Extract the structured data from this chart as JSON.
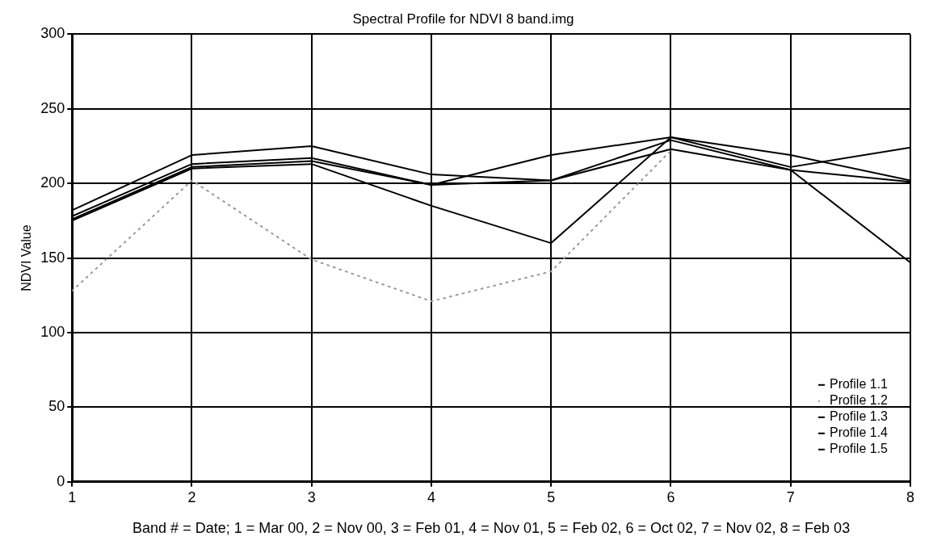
{
  "chart_data": {
    "type": "line",
    "title": "Spectral Profile for NDVI 8 band.img",
    "xlabel": "Band # = Date; 1 = Mar 00, 2 = Nov 00, 3 = Feb 01, 4 = Nov 01, 5 = Feb 02, 6 = Oct 02, 7 = Nov 02, 8 = Feb 03",
    "ylabel": "NDVI Value",
    "x": [
      1,
      2,
      3,
      4,
      5,
      6,
      7,
      8
    ],
    "series": [
      {
        "name": "Profile 1.1",
        "color": "#000000",
        "values": [
          182,
          219,
          225,
          206,
          202,
          223,
          209,
          147
        ]
      },
      {
        "name": "Profile 1.2",
        "color": "#9a9a9a",
        "line_style": "dotted",
        "values": [
          128,
          202,
          149,
          121,
          141,
          222,
          null,
          null
        ]
      },
      {
        "name": "Profile 1.3",
        "color": "#000000",
        "values": [
          178,
          213,
          217,
          199,
          219,
          231,
          219,
          202
        ]
      },
      {
        "name": "Profile 1.4",
        "color": "#000000",
        "values": [
          175,
          210,
          213,
          185,
          160,
          231,
          211,
          224
        ]
      },
      {
        "name": "Profile 1.5",
        "color": "#000000",
        "values": [
          176,
          211,
          215,
          199,
          202,
          229,
          209,
          201
        ]
      }
    ],
    "xlim": [
      1,
      8
    ],
    "xticks": [
      1,
      2,
      3,
      4,
      5,
      6,
      7,
      8
    ],
    "ylim": [
      0,
      300
    ],
    "yticks": [
      0,
      50,
      100,
      150,
      200,
      250,
      300
    ],
    "grid": true,
    "legend": "bottom right",
    "marker": "none",
    "line_style": "solid"
  }
}
